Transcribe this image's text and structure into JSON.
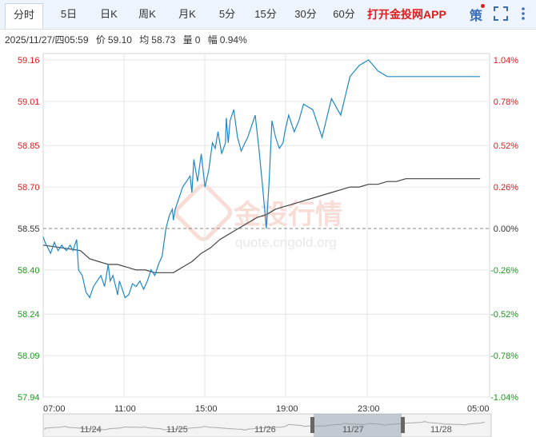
{
  "tabs": [
    {
      "label": "分时",
      "active": true
    },
    {
      "label": "5日",
      "active": false
    },
    {
      "label": "日K",
      "active": false
    },
    {
      "label": "周K",
      "active": false
    },
    {
      "label": "月K",
      "active": false
    },
    {
      "label": "5分",
      "active": false
    },
    {
      "label": "15分",
      "active": false
    },
    {
      "label": "30分",
      "active": false
    },
    {
      "label": "60分",
      "active": false
    }
  ],
  "app_link": "打开金投网APP",
  "strategy_label": "策",
  "info": {
    "datetime": "2025/11/27/四05:59",
    "price_label": "价",
    "price": "59.10",
    "avg_label": "均",
    "avg": "58.73",
    "vol_label": "量",
    "vol": "0",
    "amp_label": "幅",
    "amp": "0.94%"
  },
  "watermark": {
    "text": "金投行情",
    "url": "quote.cngold.org"
  },
  "colors": {
    "up": "#e01b1b",
    "down": "#1a9a1a",
    "price_line": "#1e88c8",
    "avg_line": "#444444"
  },
  "chart_data": {
    "type": "line",
    "base_price": 58.55,
    "y_ticks": [
      "59.16",
      "59.01",
      "58.85",
      "58.70",
      "58.55",
      "58.40",
      "58.24",
      "58.09",
      "57.94"
    ],
    "pct_ticks": [
      "1.04%",
      "0.78%",
      "0.52%",
      "0.26%",
      "0.00%",
      "-0.26%",
      "-0.52%",
      "-0.78%",
      "-1.04%"
    ],
    "ylim": [
      57.94,
      59.16
    ],
    "x_ticks": [
      "07:00",
      "11:00",
      "15:00",
      "19:00",
      "23:00",
      "05:00"
    ],
    "series": [
      {
        "name": "price",
        "x": [
          0,
          0.2,
          0.5,
          0.8,
          1.2,
          1.6,
          2.0,
          2.2,
          2.5,
          2.9,
          3.2,
          3.6,
          3.8,
          4.2,
          4.6,
          5.0,
          5.4,
          5.8,
          6.2,
          6.6,
          7.0,
          7.2,
          7.5,
          7.8,
          8.0,
          8.2,
          8.5,
          8.8,
          9.2,
          9.6,
          10.0,
          10.4,
          10.8,
          11.2,
          11.6,
          12.0,
          12.4,
          12.8,
          13.2,
          13.6,
          13.9,
          14.0,
          14.2,
          14.6,
          15.0,
          15.4,
          15.8,
          16.0,
          16.2,
          16.6,
          17.0,
          17.4,
          17.8,
          18.2,
          18.5,
          18.8,
          19.2,
          19.6,
          19.7,
          19.9,
          20.1,
          20.5,
          20.9,
          21.3,
          21.7,
          22.0,
          22.4,
          22.8,
          23.2,
          23.6,
          24.0,
          24.3,
          24.6,
          25.0,
          25.4,
          25.8,
          26.0,
          26.4,
          27.0,
          27.5,
          28.0,
          29.0,
          30.0,
          31.0,
          32.0,
          33.0,
          34.0,
          35.0,
          36.0,
          37.0,
          38.0,
          39.0,
          40.0,
          41.0,
          42.0,
          43.0,
          44.0,
          45.0,
          46.0,
          47.0
        ],
        "values": [
          58.52,
          58.5,
          58.48,
          58.46,
          58.5,
          58.47,
          58.49,
          58.48,
          58.47,
          58.49,
          58.47,
          58.51,
          58.4,
          58.38,
          58.32,
          58.3,
          58.34,
          58.36,
          58.38,
          58.34,
          58.42,
          58.36,
          58.38,
          58.34,
          58.31,
          58.36,
          58.33,
          58.3,
          58.31,
          58.35,
          58.34,
          58.36,
          58.33,
          58.36,
          58.4,
          58.38,
          58.42,
          58.45,
          58.55,
          58.6,
          58.62,
          58.58,
          58.62,
          58.66,
          58.7,
          58.72,
          58.74,
          58.68,
          58.8,
          58.72,
          58.82,
          58.7,
          58.76,
          58.86,
          58.84,
          58.9,
          58.82,
          58.86,
          58.95,
          58.86,
          58.94,
          58.98,
          58.88,
          58.83,
          58.86,
          58.88,
          58.92,
          58.96,
          58.84,
          58.7,
          58.55,
          58.72,
          58.94,
          58.88,
          58.84,
          58.86,
          58.9,
          58.96,
          58.9,
          58.94,
          59.0,
          58.98,
          58.88,
          59.02,
          58.96,
          59.1,
          59.14,
          59.16,
          59.12,
          59.1,
          59.1,
          59.1,
          59.1,
          59.1,
          59.1,
          59.1,
          59.1,
          59.1,
          59.1,
          59.1
        ]
      },
      {
        "name": "average",
        "x": [
          0,
          2,
          4,
          5,
          6,
          7,
          8,
          9,
          10,
          11,
          12,
          13,
          14,
          15,
          16,
          17,
          18,
          19,
          20,
          21,
          22,
          23,
          24,
          25,
          26,
          27,
          28,
          29,
          30,
          31,
          32,
          33,
          34,
          35,
          36,
          37,
          38,
          39,
          40,
          41,
          42,
          43,
          44,
          45,
          46,
          47
        ],
        "values": [
          58.49,
          58.48,
          58.47,
          58.44,
          58.43,
          58.42,
          58.42,
          58.41,
          58.4,
          58.4,
          58.39,
          58.39,
          58.39,
          58.41,
          58.43,
          58.46,
          58.48,
          58.51,
          58.53,
          58.55,
          58.57,
          58.59,
          58.6,
          58.62,
          58.63,
          58.64,
          58.65,
          58.66,
          58.67,
          58.68,
          58.69,
          58.7,
          58.7,
          58.71,
          58.71,
          58.72,
          58.72,
          58.73,
          58.73,
          58.73,
          58.73,
          58.73,
          58.73,
          58.73,
          58.73,
          58.73
        ]
      }
    ],
    "title": "",
    "xlabel": "",
    "ylabel": ""
  },
  "navigator": {
    "dates": [
      "11/24",
      "11/25",
      "11/26",
      "11/27",
      "11/28"
    ]
  }
}
